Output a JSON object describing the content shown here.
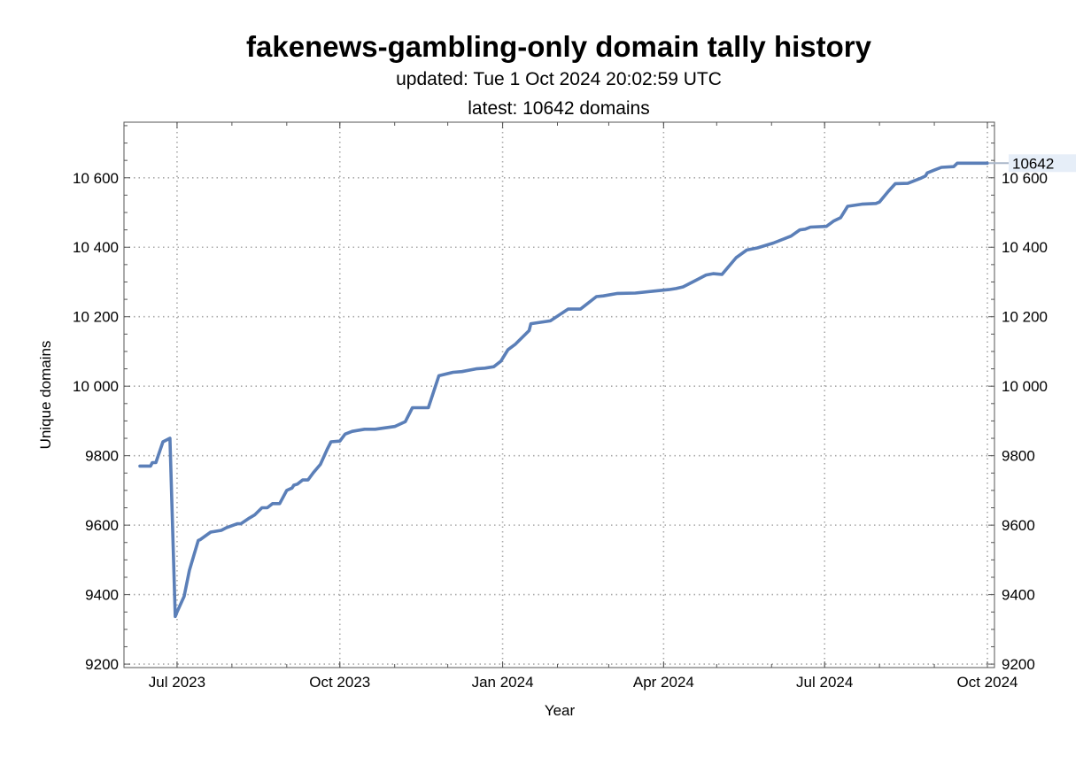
{
  "chart_data": {
    "type": "line",
    "title": "fakenews-gambling-only domain tally history",
    "subtitle": "updated: Tue 1 Oct 2024 20:02:59 UTC",
    "subtitle2": "latest: 10642 domains",
    "xlabel": "Year",
    "ylabel": "Unique domains",
    "xlim": [
      "2023-06-01",
      "2024-10-05"
    ],
    "ylim": [
      9190,
      10760
    ],
    "x_ticks": [
      {
        "date": "2023-07-01",
        "label": "Jul 2023"
      },
      {
        "date": "2023-10-01",
        "label": "Oct 2023"
      },
      {
        "date": "2024-01-01",
        "label": "Jan 2024"
      },
      {
        "date": "2024-04-01",
        "label": "Apr 2024"
      },
      {
        "date": "2024-07-01",
        "label": "Jul 2024"
      },
      {
        "date": "2024-10-01",
        "label": "Oct 2024"
      }
    ],
    "y_ticks": [
      {
        "value": 9200,
        "label": "9200"
      },
      {
        "value": 9400,
        "label": "9400"
      },
      {
        "value": 9600,
        "label": "9600"
      },
      {
        "value": 9800,
        "label": "9800"
      },
      {
        "value": 10000,
        "label": "10 000"
      },
      {
        "value": 10200,
        "label": "10 200"
      },
      {
        "value": 10400,
        "label": "10 400"
      },
      {
        "value": 10600,
        "label": "10 600"
      }
    ],
    "grid": true,
    "latest_label": "10642",
    "color": "#5b7fb8",
    "series": [
      {
        "x": [
          "2023-06-10",
          "2023-06-16",
          "2023-06-17",
          "2023-06-19",
          "2023-06-23",
          "2023-06-27",
          "2023-06-30",
          "2023-07-01",
          "2023-07-05",
          "2023-07-08",
          "2023-07-13",
          "2023-07-14",
          "2023-07-20",
          "2023-07-26",
          "2023-07-29",
          "2023-08-04",
          "2023-08-06",
          "2023-08-11",
          "2023-08-14",
          "2023-08-18",
          "2023-08-21",
          "2023-08-24",
          "2023-08-28",
          "2023-09-01",
          "2023-09-04",
          "2023-09-05",
          "2023-09-07",
          "2023-09-10",
          "2023-09-13",
          "2023-09-16",
          "2023-09-20",
          "2023-09-24",
          "2023-09-26",
          "2023-10-01",
          "2023-10-04",
          "2023-10-08",
          "2023-10-15",
          "2023-10-21",
          "2023-11-01",
          "2023-11-07",
          "2023-11-11",
          "2023-11-20",
          "2023-11-26",
          "2023-12-04",
          "2023-12-09",
          "2023-12-17",
          "2023-12-22",
          "2023-12-27",
          "2023-12-31",
          "2024-01-04",
          "2024-01-08",
          "2024-01-16",
          "2024-01-17",
          "2024-01-28",
          "2024-02-07",
          "2024-02-14",
          "2024-02-23",
          "2024-02-27",
          "2024-03-06",
          "2024-03-16",
          "2024-03-27",
          "2024-04-04",
          "2024-04-08",
          "2024-04-12",
          "2024-04-19",
          "2024-04-25",
          "2024-04-29",
          "2024-05-04",
          "2024-05-12",
          "2024-05-18",
          "2024-05-24",
          "2024-06-02",
          "2024-06-12",
          "2024-06-17",
          "2024-06-20",
          "2024-06-23",
          "2024-07-02",
          "2024-07-06",
          "2024-07-10",
          "2024-07-14",
          "2024-07-22",
          "2024-07-26",
          "2024-07-30",
          "2024-08-01",
          "2024-08-06",
          "2024-08-10",
          "2024-08-17",
          "2024-08-24",
          "2024-08-27",
          "2024-08-28",
          "2024-09-01",
          "2024-09-05",
          "2024-09-12",
          "2024-09-14",
          "2024-10-01"
        ],
        "y": [
          9770,
          9770,
          9780,
          9780,
          9840,
          9850,
          9337,
          9350,
          9395,
          9470,
          9556,
          9558,
          9580,
          9585,
          9593,
          9604,
          9604,
          9621,
          9630,
          9650,
          9650,
          9662,
          9662,
          9700,
          9707,
          9715,
          9718,
          9730,
          9730,
          9751,
          9775,
          9820,
          9840,
          9842,
          9862,
          9870,
          9876,
          9876,
          9884,
          9898,
          9938,
          9938,
          10030,
          10040,
          10042,
          10050,
          10052,
          10056,
          10072,
          10105,
          10120,
          10160,
          10180,
          10188,
          10222,
          10222,
          10258,
          10260,
          10267,
          10268,
          10274,
          10278,
          10281,
          10286,
          10304,
          10320,
          10324,
          10322,
          10370,
          10392,
          10398,
          10412,
          10432,
          10450,
          10452,
          10458,
          10460,
          10475,
          10485,
          10518,
          10524,
          10525,
          10526,
          10530,
          10561,
          10583,
          10584,
          10598,
          10605,
          10614,
          10622,
          10630,
          10632,
          10642,
          10642
        ]
      }
    ]
  }
}
